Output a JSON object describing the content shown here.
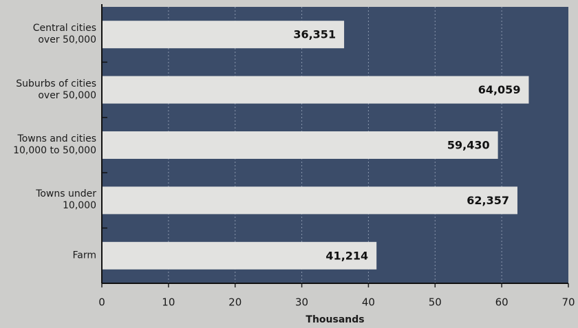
{
  "chart_data": {
    "type": "barh",
    "categories": [
      "Central cities\nover 50,000",
      "Suburbs of cities\nover 50,000",
      "Towns and cities\n10,000 to 50,000",
      "Towns under\n10,000",
      "Farm"
    ],
    "values": [
      36.351,
      64.059,
      59.43,
      62.357,
      41.214
    ],
    "value_labels": [
      "36,351",
      "64,059",
      "59,430",
      "62,357",
      "41,214"
    ],
    "color": "#e2e2e0",
    "xlabel": "Thousands",
    "xlim": [
      0,
      70
    ],
    "xticks": [
      0,
      10,
      20,
      30,
      40,
      50,
      60,
      70
    ],
    "grid": true
  }
}
